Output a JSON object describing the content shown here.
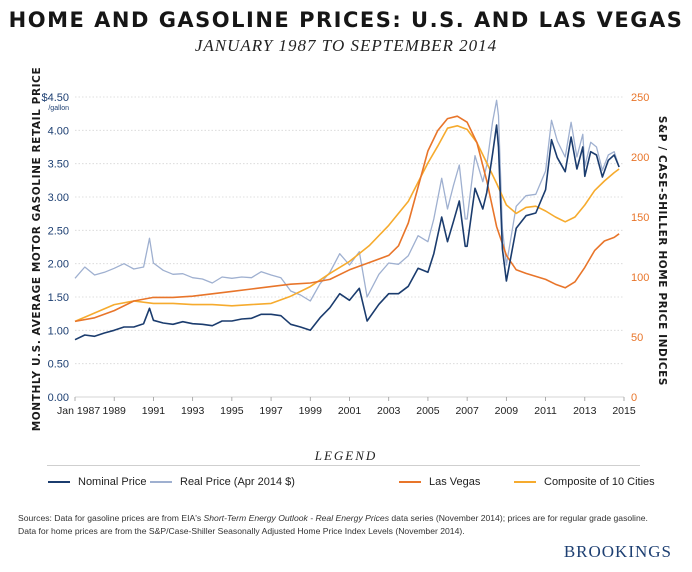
{
  "title": "HOME AND GASOLINE PRICES: U.S. AND LAS VEGAS",
  "subtitle": "JANUARY 1987 TO SEPTEMBER 2014",
  "legend_title": "LEGEND",
  "sources": {
    "line1_a": "Sources: Data for gasoline prices are from EIA's ",
    "line1_em": "Short-Term Energy Outlook - Real Energy Prices",
    "line1_b": " data series (November 2014); prices are for regular grade gasoline.",
    "line2": "Data for home prices are from the S&P/Case-Shiller Seasonally Adjusted Home Price Index Levels (November 2014)."
  },
  "brand": "BROOKINGS",
  "colors": {
    "nominal": "#1b3c6e",
    "real": "#9fb0d0",
    "las_vegas": "#e8752a",
    "composite": "#f6ab2e",
    "grid": "#d5d5d5",
    "left_axis_text": "#1d3f72",
    "right_axis_text": "#e8752a"
  },
  "chart_data": {
    "type": "line",
    "title": "HOME AND GASOLINE PRICES: U.S. AND LAS VEGAS",
    "xlabel": "",
    "x_range": [
      1987,
      2015
    ],
    "x_ticks": [
      1987,
      1989,
      1991,
      1993,
      1995,
      1997,
      1999,
      2001,
      2003,
      2005,
      2007,
      2009,
      2011,
      2013,
      2015
    ],
    "x_tick_labels": [
      "Jan 1987",
      "1989",
      "1991",
      "1993",
      "1995",
      "1997",
      "1999",
      "2001",
      "2003",
      "2005",
      "2007",
      "2009",
      "2011",
      "2013",
      "2015"
    ],
    "ylabel_left": "MONTHLY U.S. AVERAGE MOTOR GASOLINE RETAIL PRICE",
    "ylim_left": [
      0,
      4.5
    ],
    "y_ticks_left": [
      "0.00",
      "0.50",
      "1.00",
      "1.50",
      "2.00",
      "2.50",
      "3.00",
      "3.50",
      "4.00",
      "$4.50"
    ],
    "y_unit_left": "/gallon",
    "ylabel_right": "S&P / CASE-SHILLER HOME PRICE INDICES",
    "ylim_right": [
      0,
      250
    ],
    "y_ticks_right": [
      "0",
      "50",
      "100",
      "150",
      "200",
      "250"
    ],
    "series": [
      {
        "name": "Nominal Price",
        "axis": "left",
        "x": [
          1987.0,
          1987.5,
          1988.0,
          1988.5,
          1989.0,
          1989.5,
          1990.0,
          1990.5,
          1990.8,
          1991.0,
          1991.5,
          1992.0,
          1992.5,
          1993.0,
          1993.5,
          1994.0,
          1994.5,
          1995.0,
          1995.5,
          1996.0,
          1996.5,
          1997.0,
          1997.5,
          1998.0,
          1998.5,
          1999.0,
          1999.5,
          2000.0,
          2000.5,
          2001.0,
          2001.5,
          2001.9,
          2002.5,
          2003.0,
          2003.5,
          2004.0,
          2004.5,
          2005.0,
          2005.3,
          2005.7,
          2006.0,
          2006.3,
          2006.6,
          2006.9,
          2007.0,
          2007.4,
          2007.8,
          2008.0,
          2008.3,
          2008.5,
          2008.6,
          2008.8,
          2009.0,
          2009.5,
          2010.0,
          2010.5,
          2011.0,
          2011.3,
          2011.6,
          2012.0,
          2012.3,
          2012.6,
          2012.9,
          2013.0,
          2013.3,
          2013.6,
          2013.9,
          2014.2,
          2014.5,
          2014.75
        ],
        "values": [
          0.86,
          0.93,
          0.91,
          0.96,
          1.0,
          1.05,
          1.05,
          1.1,
          1.33,
          1.15,
          1.11,
          1.09,
          1.13,
          1.1,
          1.09,
          1.07,
          1.14,
          1.14,
          1.17,
          1.18,
          1.24,
          1.24,
          1.22,
          1.09,
          1.05,
          1.0,
          1.19,
          1.34,
          1.55,
          1.45,
          1.63,
          1.14,
          1.39,
          1.55,
          1.55,
          1.66,
          1.93,
          1.87,
          2.15,
          2.7,
          2.33,
          2.63,
          2.94,
          2.26,
          2.26,
          3.13,
          2.82,
          3.07,
          3.65,
          4.08,
          3.75,
          2.22,
          1.74,
          2.53,
          2.72,
          2.76,
          3.11,
          3.86,
          3.59,
          3.38,
          3.9,
          3.42,
          3.75,
          3.31,
          3.68,
          3.63,
          3.3,
          3.55,
          3.63,
          3.45
        ]
      },
      {
        "name": "Real Price (Apr 2014 $)",
        "axis": "left",
        "x": [
          1987.0,
          1987.5,
          1988.0,
          1988.5,
          1989.0,
          1989.5,
          1990.0,
          1990.5,
          1990.8,
          1991.0,
          1991.5,
          1992.0,
          1992.5,
          1993.0,
          1993.5,
          1994.0,
          1994.5,
          1995.0,
          1995.5,
          1996.0,
          1996.5,
          1997.0,
          1997.5,
          1998.0,
          1998.5,
          1999.0,
          1999.5,
          2000.0,
          2000.5,
          2001.0,
          2001.5,
          2001.9,
          2002.5,
          2003.0,
          2003.5,
          2004.0,
          2004.5,
          2005.0,
          2005.3,
          2005.7,
          2006.0,
          2006.3,
          2006.6,
          2006.9,
          2007.0,
          2007.4,
          2007.8,
          2008.0,
          2008.3,
          2008.5,
          2008.6,
          2008.8,
          2009.0,
          2009.5,
          2010.0,
          2010.5,
          2011.0,
          2011.3,
          2011.6,
          2012.0,
          2012.3,
          2012.6,
          2012.9,
          2013.0,
          2013.3,
          2013.6,
          2013.9,
          2014.2,
          2014.5,
          2014.75
        ],
        "values": [
          1.78,
          1.95,
          1.83,
          1.87,
          1.93,
          2.0,
          1.92,
          1.95,
          2.38,
          2.01,
          1.9,
          1.84,
          1.85,
          1.79,
          1.77,
          1.71,
          1.8,
          1.78,
          1.8,
          1.79,
          1.88,
          1.83,
          1.79,
          1.59,
          1.53,
          1.44,
          1.7,
          1.87,
          2.15,
          1.98,
          2.18,
          1.5,
          1.84,
          2.01,
          1.99,
          2.12,
          2.42,
          2.33,
          2.67,
          3.28,
          2.82,
          3.17,
          3.48,
          2.67,
          2.67,
          3.62,
          3.23,
          3.48,
          4.13,
          4.45,
          4.22,
          2.52,
          1.98,
          2.86,
          3.02,
          3.04,
          3.39,
          4.15,
          3.84,
          3.6,
          4.12,
          3.6,
          3.94,
          3.46,
          3.82,
          3.75,
          3.4,
          3.63,
          3.68,
          3.45
        ]
      },
      {
        "name": "Las Vegas",
        "axis": "right",
        "x": [
          1987.0,
          1988.0,
          1989.0,
          1990.0,
          1991.0,
          1992.0,
          1993.0,
          1994.0,
          1995.0,
          1996.0,
          1997.0,
          1998.0,
          1999.0,
          2000.0,
          2001.0,
          2002.0,
          2003.0,
          2003.5,
          2004.0,
          2004.5,
          2005.0,
          2005.5,
          2006.0,
          2006.5,
          2007.0,
          2007.5,
          2008.0,
          2008.5,
          2009.0,
          2009.5,
          2010.0,
          2011.0,
          2011.5,
          2012.0,
          2012.5,
          2013.0,
          2013.5,
          2014.0,
          2014.5,
          2014.75
        ],
        "values": [
          63,
          66,
          72,
          80,
          83,
          83,
          84,
          86,
          88,
          90,
          92,
          94,
          95,
          98,
          106,
          112,
          118,
          126,
          145,
          175,
          205,
          222,
          232,
          234,
          229,
          212,
          180,
          142,
          118,
          106,
          103,
          98,
          94,
          91,
          96,
          108,
          122,
          130,
          133,
          136
        ]
      },
      {
        "name": "Composite of 10 Cities",
        "axis": "right",
        "x": [
          1987.0,
          1988.0,
          1989.0,
          1990.0,
          1991.0,
          1992.0,
          1993.0,
          1994.0,
          1995.0,
          1996.0,
          1997.0,
          1998.0,
          1999.0,
          2000.0,
          2001.0,
          2002.0,
          2003.0,
          2004.0,
          2004.5,
          2005.0,
          2005.5,
          2006.0,
          2006.5,
          2007.0,
          2007.5,
          2008.0,
          2008.5,
          2009.0,
          2009.5,
          2010.0,
          2010.5,
          2011.0,
          2011.5,
          2012.0,
          2012.5,
          2013.0,
          2013.5,
          2014.0,
          2014.5,
          2014.75
        ],
        "values": [
          63,
          70,
          77,
          80,
          78,
          78,
          77,
          77,
          76,
          77,
          78,
          84,
          92,
          103,
          113,
          126,
          143,
          163,
          179,
          195,
          209,
          224,
          226,
          223,
          212,
          195,
          178,
          160,
          153,
          158,
          159,
          155,
          150,
          146,
          150,
          160,
          172,
          180,
          187,
          190
        ]
      }
    ]
  }
}
